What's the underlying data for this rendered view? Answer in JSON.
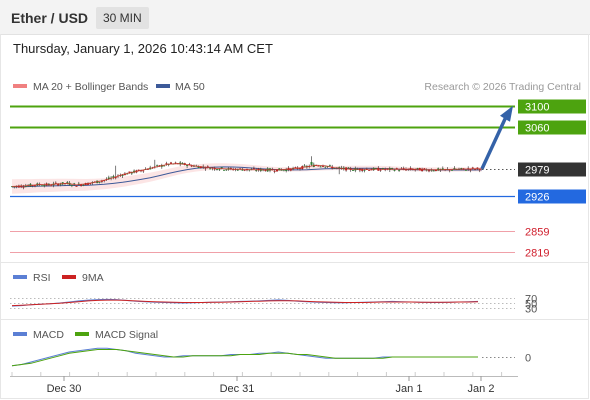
{
  "header": {
    "title": "Ether / USD",
    "timeframe": "30 MIN"
  },
  "timestamp": "Thursday, January 1, 2026 10:43:14 AM CET",
  "legend": {
    "ma20_label": "MA 20 + Bollinger Bands",
    "ma50_label": "MA 50",
    "credit": "Research © 2026 Trading Central",
    "ma20_color": "#f08080",
    "ma50_color": "#3d5a99"
  },
  "chart_data": [
    {
      "type": "candlestick",
      "title": "",
      "x_ticks": [
        "Dec 30",
        "Dec 31",
        "Jan 1",
        "Jan 2"
      ],
      "ylim": [
        2800,
        3115
      ],
      "current_price": 2979,
      "price_series": [
        2945,
        2946,
        2947,
        2949,
        2948,
        2950,
        2951,
        2948,
        2950,
        2953,
        2957,
        2962,
        2968,
        2972,
        2976,
        2980,
        2984,
        2988,
        2989,
        2987,
        2984,
        2982,
        2980,
        2979,
        2978,
        2978,
        2977,
        2977,
        2977,
        2977,
        2978,
        2980,
        2983,
        2986,
        2985,
        2981,
        2979,
        2978,
        2978,
        2978,
        2978,
        2978,
        2978,
        2978,
        2978,
        2977,
        2977,
        2977,
        2978,
        2978,
        2979,
        2979
      ],
      "levels": [
        {
          "label": "3100",
          "value": 3100,
          "kind": "resistance",
          "color": "#4da30f"
        },
        {
          "label": "3060",
          "value": 3060,
          "kind": "resistance",
          "color": "#4da30f"
        },
        {
          "label": "2979",
          "value": 2979,
          "kind": "current",
          "color": "#333333"
        },
        {
          "label": "2926",
          "value": 2926,
          "kind": "pivot",
          "color": "#2369e0"
        },
        {
          "label": "2859",
          "value": 2859,
          "kind": "support",
          "color": "#d0202e"
        },
        {
          "label": "2819",
          "value": 2819,
          "kind": "support",
          "color": "#d0202e"
        }
      ],
      "projection": {
        "from": 2979,
        "to": 3100
      }
    },
    {
      "type": "line",
      "title": "",
      "legend": [
        "RSI",
        "9MA"
      ],
      "colors": [
        "#5b7fd4",
        "#cc2222"
      ],
      "levels": [
        "70",
        "50",
        "30"
      ],
      "ylim": [
        0,
        100
      ],
      "rsi": [
        38,
        40,
        43,
        45,
        47,
        50,
        54,
        58,
        61,
        63,
        64,
        63,
        60,
        57,
        55,
        53,
        52,
        51,
        50,
        51,
        52,
        53,
        54,
        55,
        56,
        57,
        58,
        60,
        62,
        60,
        57,
        55,
        53,
        52,
        51,
        51,
        52,
        53,
        54,
        55,
        56,
        55,
        54,
        53,
        52,
        52,
        53,
        54,
        55,
        56
      ],
      "rsi_ma": [
        40,
        41,
        43,
        45,
        47,
        49,
        52,
        55,
        58,
        60,
        61,
        61,
        60,
        58,
        56,
        55,
        54,
        53,
        52,
        52,
        52,
        53,
        53,
        54,
        55,
        56,
        57,
        58,
        59,
        59,
        58,
        56,
        55,
        54,
        53,
        52,
        52,
        52,
        53,
        54,
        54,
        54,
        54,
        53,
        53,
        53,
        53,
        54,
        54,
        55
      ]
    },
    {
      "type": "line",
      "title": "",
      "legend": [
        "MACD",
        "MACD Signal"
      ],
      "colors": [
        "#5b7fd4",
        "#4da30f"
      ],
      "zero_label": "0",
      "ylim": [
        -12,
        12
      ],
      "macd": [
        -7,
        -6,
        -4,
        -2,
        0,
        2,
        4,
        5,
        6,
        7,
        7,
        6,
        5,
        3,
        2,
        1,
        0,
        0,
        1,
        1,
        1,
        1,
        1,
        2,
        2,
        2,
        3,
        3,
        4,
        3,
        2,
        1,
        0,
        -1,
        -1,
        -1,
        -1,
        -1,
        -1,
        0,
        0,
        0,
        0,
        0,
        0,
        0,
        0,
        0,
        0,
        0
      ],
      "macd_signal": [
        -7,
        -6,
        -5,
        -3,
        -1,
        1,
        3,
        4,
        5,
        6,
        6,
        6,
        5,
        4,
        3,
        2,
        1,
        0,
        0,
        1,
        1,
        1,
        1,
        1,
        2,
        2,
        2,
        3,
        3,
        3,
        2,
        2,
        1,
        0,
        -1,
        -1,
        -1,
        -1,
        -1,
        -1,
        0,
        0,
        0,
        0,
        0,
        0,
        0,
        0,
        0,
        0
      ]
    }
  ]
}
